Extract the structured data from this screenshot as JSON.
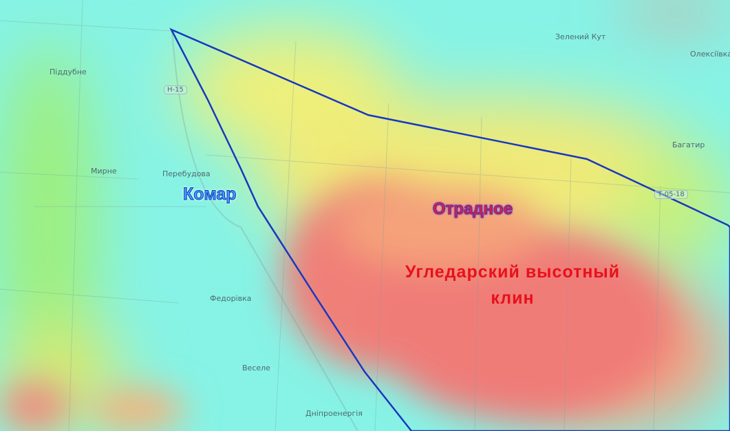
{
  "map": {
    "type": "elevation-heatmap",
    "colors": {
      "low": "#86f3e6",
      "mid": "#f2ef7a",
      "high": "#f08a80",
      "outline": "#1838c0"
    },
    "places": [
      {
        "name": "Піддубне"
      },
      {
        "name": "Мирне"
      },
      {
        "name": "Перебудова"
      },
      {
        "name": "Федорівка"
      },
      {
        "name": "Веселе"
      },
      {
        "name": "Дніпроенергія"
      },
      {
        "name": "Зелений Кут"
      },
      {
        "name": "Олексіївка"
      },
      {
        "name": "Багатир"
      }
    ],
    "roads": [
      "Н-15",
      "Т-05-18"
    ],
    "labels": {
      "komar": "Комар",
      "otradnoe": "Отрадное",
      "title_line1": "Угледарский высотный",
      "title_line2": "клин"
    }
  }
}
